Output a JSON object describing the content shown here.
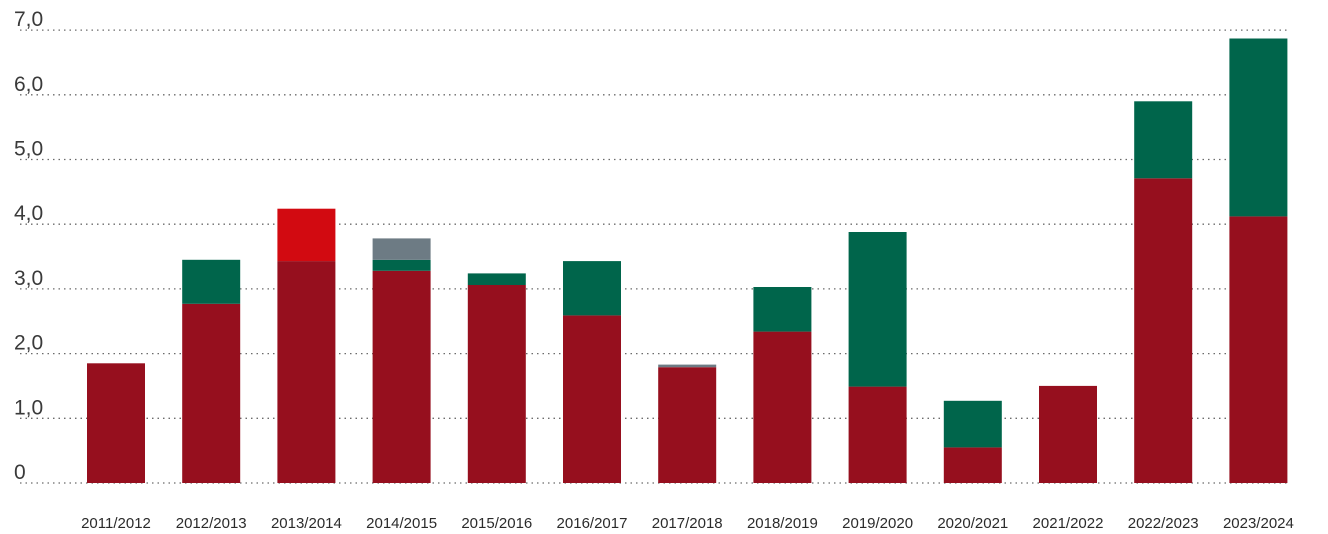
{
  "chart_data": {
    "type": "bar",
    "stacked": true,
    "categories": [
      "2011/2012",
      "2012/2013",
      "2013/2014",
      "2014/2015",
      "2015/2016",
      "2016/2017",
      "2017/2018",
      "2018/2019",
      "2019/2020",
      "2020/2021",
      "2021/2022",
      "2022/2023",
      "2023/2024"
    ],
    "series": [
      {
        "color": "#960f1e",
        "values": [
          1.85,
          2.77,
          3.43,
          3.28,
          3.06,
          2.59,
          1.79,
          2.34,
          1.49,
          0.55,
          1.5,
          4.71,
          4.12
        ]
      },
      {
        "color": "#00654b",
        "values": [
          0,
          0.68,
          0,
          0.17,
          0.18,
          0.84,
          0,
          0.69,
          2.39,
          0.72,
          0,
          1.19,
          2.75
        ]
      },
      {
        "color": "#d20a11",
        "values": [
          0,
          0,
          0.81,
          0,
          0,
          0,
          0,
          0,
          0,
          0,
          0,
          0,
          0
        ]
      },
      {
        "color": "#6d7b84",
        "values": [
          0,
          0,
          0,
          0.33,
          0,
          0,
          0.04,
          0,
          0,
          0,
          0,
          0,
          0
        ]
      }
    ],
    "yticks": [
      "0",
      "1,0",
      "2,0",
      "3,0",
      "4,0",
      "5,0",
      "6,0",
      "7,0"
    ],
    "ylim": [
      0,
      7
    ],
    "grid": true
  }
}
